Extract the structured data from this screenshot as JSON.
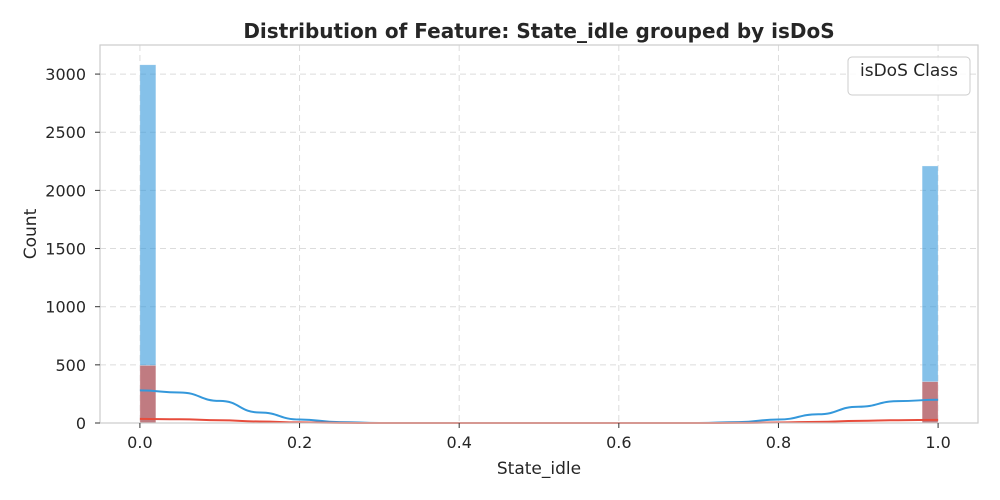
{
  "chart_data": {
    "type": "histogram",
    "title": "Distribution of Feature: State_idle grouped by isDoS",
    "xlabel": "State_idle",
    "ylabel": "Count",
    "xlim": [
      -0.05,
      1.05
    ],
    "ylim": [
      0,
      3250
    ],
    "x_ticks": [
      0.0,
      0.2,
      0.4,
      0.6,
      0.8,
      1.0
    ],
    "x_tick_labels": [
      "0.0",
      "0.2",
      "0.4",
      "0.6",
      "0.8",
      "1.0"
    ],
    "y_ticks": [
      0,
      500,
      1000,
      1500,
      2000,
      2500,
      3000
    ],
    "y_tick_labels": [
      "0",
      "500",
      "1000",
      "1500",
      "2000",
      "2500",
      "3000"
    ],
    "grid": true,
    "legend": {
      "title": "isDoS Class",
      "placement": "top-right"
    },
    "series": [
      {
        "color": "#3498db",
        "bars": [
          {
            "x0": 0.0,
            "x1": 0.02,
            "count": 3080
          },
          {
            "x0": 0.98,
            "x1": 1.0,
            "count": 2210
          }
        ],
        "kde": [
          [
            0.0,
            280
          ],
          [
            0.05,
            262
          ],
          [
            0.1,
            190
          ],
          [
            0.15,
            90
          ],
          [
            0.2,
            30
          ],
          [
            0.25,
            8
          ],
          [
            0.3,
            0
          ],
          [
            0.7,
            0
          ],
          [
            0.75,
            8
          ],
          [
            0.8,
            30
          ],
          [
            0.85,
            75
          ],
          [
            0.9,
            140
          ],
          [
            0.95,
            188
          ],
          [
            1.0,
            200
          ]
        ]
      },
      {
        "color": "#e74c3c",
        "bars": [
          {
            "x0": 0.0,
            "x1": 0.02,
            "count": 495
          },
          {
            "x0": 0.98,
            "x1": 1.0,
            "count": 355
          }
        ],
        "kde": [
          [
            0.0,
            35
          ],
          [
            0.05,
            32
          ],
          [
            0.1,
            24
          ],
          [
            0.15,
            13
          ],
          [
            0.2,
            5
          ],
          [
            0.25,
            1
          ],
          [
            0.3,
            0
          ],
          [
            0.7,
            0
          ],
          [
            0.75,
            1
          ],
          [
            0.8,
            4
          ],
          [
            0.85,
            10
          ],
          [
            0.9,
            18
          ],
          [
            0.95,
            24
          ],
          [
            1.0,
            27
          ]
        ]
      }
    ]
  }
}
